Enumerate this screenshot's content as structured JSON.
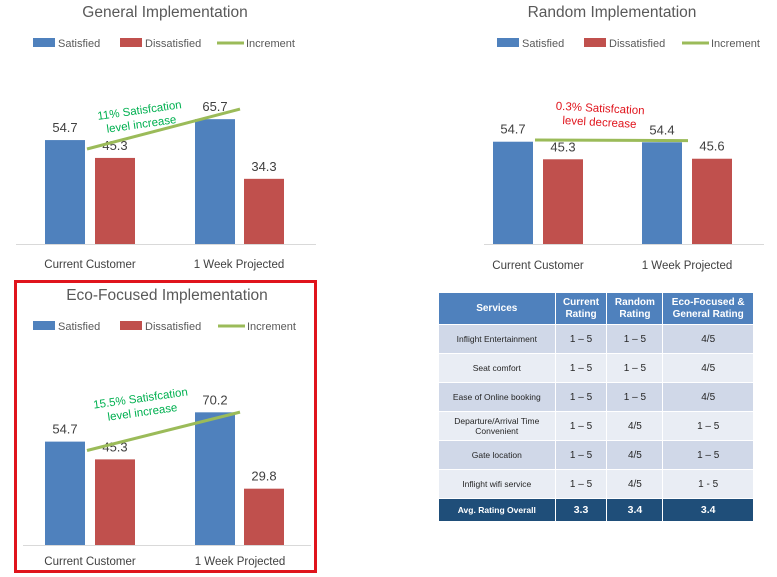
{
  "chart_data": [
    {
      "type": "bar",
      "title": "General Implementation",
      "categories": [
        "Current Customer",
        "1 Week Projected"
      ],
      "series": [
        {
          "name": "Satisfied",
          "values": [
            54.7,
            65.7
          ],
          "color": "#4f81bd"
        },
        {
          "name": "Dissatisfied",
          "values": [
            45.3,
            34.3
          ],
          "color": "#c0504d"
        }
      ],
      "line": {
        "name": "Increment",
        "color": "#9bbb59",
        "from": 50,
        "to": 71
      },
      "annotation": {
        "lines": [
          "11% Satisfcation",
          "level increase"
        ],
        "color": "#00b050"
      },
      "legend": "top",
      "ylim": [
        0,
        100
      ],
      "grid": false
    },
    {
      "type": "bar",
      "title": "Random Implementation",
      "categories": [
        "Current Customer",
        "1 Week Projected"
      ],
      "series": [
        {
          "name": "Satisfied",
          "values": [
            54.7,
            54.4
          ],
          "color": "#4f81bd"
        },
        {
          "name": "Dissatisfied",
          "values": [
            45.3,
            45.6
          ],
          "color": "#c0504d"
        }
      ],
      "line": {
        "name": "Increment",
        "color": "#9bbb59",
        "from": 55.6,
        "to": 55.3
      },
      "annotation": {
        "lines": [
          "0.3% Satisfcation",
          "level decrease"
        ],
        "color": "#e0141c"
      },
      "legend": "top",
      "ylim": [
        0,
        100
      ],
      "grid": false
    },
    {
      "type": "bar",
      "title": "Eco-Focused Implementation",
      "categories": [
        "Current Customer",
        "1 Week Projected"
      ],
      "series": [
        {
          "name": "Satisfied",
          "values": [
            54.7,
            70.2
          ],
          "color": "#4f81bd"
        },
        {
          "name": "Dissatisfied",
          "values": [
            45.3,
            29.8
          ],
          "color": "#c0504d"
        }
      ],
      "line": {
        "name": "Increment",
        "color": "#9bbb59",
        "from": 50,
        "to": 70.3
      },
      "annotation": {
        "lines": [
          "15.5% Satisfcation",
          "level increase"
        ],
        "color": "#00b050"
      },
      "legend": "top",
      "ylim": [
        0,
        100
      ],
      "grid": false
    }
  ],
  "table": {
    "headers": [
      {
        "lines": [
          "Services"
        ]
      },
      {
        "lines": [
          "Current",
          "Rating"
        ]
      },
      {
        "lines": [
          "Random",
          "Rating"
        ]
      },
      {
        "lines": [
          "Eco-Focused &",
          "General Rating"
        ]
      }
    ],
    "rows": [
      {
        "service": [
          "Inflight Entertainment"
        ],
        "current": "1 – 5",
        "random": "1 – 5",
        "eco": "4/5"
      },
      {
        "service": [
          "Seat comfort"
        ],
        "current": "1 – 5",
        "random": "1 – 5",
        "eco": "4/5"
      },
      {
        "service": [
          "Ease of Online booking"
        ],
        "current": "1 – 5",
        "random": "1 – 5",
        "eco": "4/5"
      },
      {
        "service": [
          "Departure/Arrival Time",
          "Convenient"
        ],
        "current": "1 – 5",
        "random": "4/5",
        "eco": "1 – 5"
      },
      {
        "service": [
          "Gate location"
        ],
        "current": "1 – 5",
        "random": "4/5",
        "eco": "1 – 5"
      },
      {
        "service": [
          "Inflight wifi service"
        ],
        "current": "1 – 5",
        "random": "4/5",
        "eco": "1 - 5"
      }
    ],
    "footer": {
      "label": "Avg. Rating Overall",
      "current": "3.3",
      "random": "3.4",
      "eco": "3.4"
    }
  }
}
